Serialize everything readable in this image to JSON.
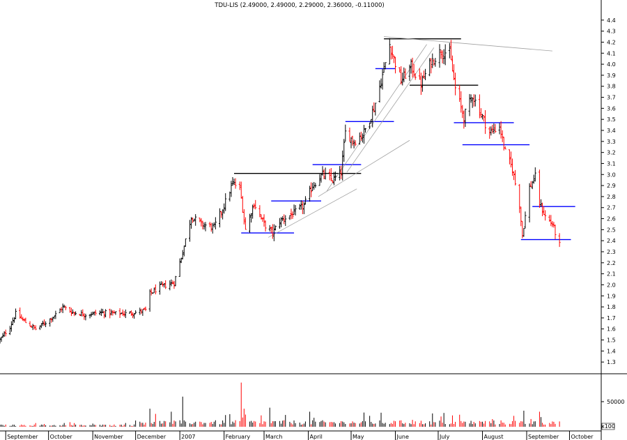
{
  "chart_data": {
    "type": "ohlc",
    "title": "TDU-LIS (2.49000, 2.49000, 2.29000, 2.36000, -0.11000)",
    "price_axis": {
      "ylim": [
        1.2,
        4.5
      ],
      "ticks": [
        "1.3",
        "1.4",
        "1.5",
        "1.6",
        "1.7",
        "1.8",
        "1.9",
        "2.0",
        "2.1",
        "2.2",
        "2.3",
        "2.4",
        "2.5",
        "2.6",
        "2.7",
        "2.8",
        "2.9",
        "3.0",
        "3.1",
        "3.2",
        "3.3",
        "3.4",
        "3.5",
        "3.6",
        "3.7",
        "3.8",
        "3.9",
        "4.0",
        "4.1",
        "4.2",
        "4.3",
        "4.4"
      ]
    },
    "volume_axis": {
      "ticks": [
        "50000",
        "0"
      ],
      "multiplier_label": "x100"
    },
    "x_axis": {
      "months": [
        "September",
        "October",
        "November",
        "December",
        "2007",
        "February",
        "March",
        "April",
        "May",
        "June",
        "July",
        "August",
        "September",
        "October"
      ],
      "start_date": "2006-08-28",
      "end_date": "2007-10-12"
    },
    "colors": {
      "up": "#000000",
      "down": "#ff0000",
      "support_resistance": "#0000ff",
      "black_line": "#000000",
      "trend_line": "#a0a0a0"
    },
    "price_path": [
      [
        "2006-08-28",
        1.5
      ],
      [
        "2006-09-04",
        1.62
      ],
      [
        "2006-09-08",
        1.74
      ],
      [
        "2006-09-15",
        1.66
      ],
      [
        "2006-09-22",
        1.6
      ],
      [
        "2006-09-29",
        1.66
      ],
      [
        "2006-10-06",
        1.73
      ],
      [
        "2006-10-11",
        1.8
      ],
      [
        "2006-10-18",
        1.75
      ],
      [
        "2006-10-27",
        1.73
      ],
      [
        "2006-11-06",
        1.75
      ],
      [
        "2006-11-15",
        1.74
      ],
      [
        "2006-11-24",
        1.74
      ],
      [
        "2006-12-01",
        1.75
      ],
      [
        "2006-12-08",
        1.77
      ],
      [
        "2006-12-11",
        1.92
      ],
      [
        "2006-12-18",
        1.98
      ],
      [
        "2006-12-28",
        2.02
      ],
      [
        "2007-01-03",
        2.3
      ],
      [
        "2007-01-09",
        2.62
      ],
      [
        "2007-01-16",
        2.55
      ],
      [
        "2007-01-25",
        2.52
      ],
      [
        "2007-02-01",
        2.72
      ],
      [
        "2007-02-07",
        2.92
      ],
      [
        "2007-02-12",
        2.88
      ],
      [
        "2007-02-16",
        2.5
      ],
      [
        "2007-02-22",
        2.74
      ],
      [
        "2007-03-01",
        2.55
      ],
      [
        "2007-03-07",
        2.47
      ],
      [
        "2007-03-12",
        2.58
      ],
      [
        "2007-03-22",
        2.65
      ],
      [
        "2007-03-29",
        2.72
      ],
      [
        "2007-04-04",
        2.9
      ],
      [
        "2007-04-11",
        3.0
      ],
      [
        "2007-04-18",
        2.95
      ],
      [
        "2007-04-24",
        3.02
      ],
      [
        "2007-04-27",
        3.38
      ],
      [
        "2007-05-03",
        3.3
      ],
      [
        "2007-05-10",
        3.38
      ],
      [
        "2007-05-17",
        3.6
      ],
      [
        "2007-05-23",
        3.9
      ],
      [
        "2007-05-28",
        4.18
      ],
      [
        "2007-05-31",
        4.05
      ],
      [
        "2007-06-05",
        3.85
      ],
      [
        "2007-06-12",
        3.98
      ],
      [
        "2007-06-19",
        3.82
      ],
      [
        "2007-06-26",
        4.02
      ],
      [
        "2007-07-03",
        4.12
      ],
      [
        "2007-07-09",
        4.1
      ],
      [
        "2007-07-13",
        3.78
      ],
      [
        "2007-07-19",
        3.52
      ],
      [
        "2007-07-25",
        3.72
      ],
      [
        "2007-07-31",
        3.55
      ],
      [
        "2007-08-06",
        3.38
      ],
      [
        "2007-08-13",
        3.44
      ],
      [
        "2007-08-17",
        3.2
      ],
      [
        "2007-08-22",
        3.05
      ],
      [
        "2007-08-27",
        2.72
      ],
      [
        "2007-08-29",
        2.45
      ],
      [
        "2007-09-03",
        2.88
      ],
      [
        "2007-09-07",
        2.98
      ],
      [
        "2007-09-10",
        2.74
      ],
      [
        "2007-09-14",
        2.62
      ],
      [
        "2007-09-19",
        2.55
      ],
      [
        "2007-09-24",
        2.36
      ]
    ],
    "volume_spikes": [
      [
        "2006-12-11",
        36000
      ],
      [
        "2006-12-26",
        30000
      ],
      [
        "2007-01-03",
        60000
      ],
      [
        "2007-02-13",
        88000
      ],
      [
        "2007-02-15",
        36000
      ],
      [
        "2007-03-05",
        38000
      ],
      [
        "2007-04-02",
        30000
      ],
      [
        "2007-05-22",
        28000
      ],
      [
        "2007-08-30",
        32000
      ],
      [
        "2007-09-10",
        30000
      ]
    ],
    "overlay_lines": [
      {
        "kind": "black",
        "from": [
          "2007-02-08",
          3.01
        ],
        "to": [
          "2007-05-08",
          3.01
        ]
      },
      {
        "kind": "black",
        "from": [
          "2007-05-24",
          4.23
        ],
        "to": [
          "2007-07-17",
          4.23
        ]
      },
      {
        "kind": "black",
        "from": [
          "2007-06-11",
          3.81
        ],
        "to": [
          "2007-07-29",
          3.81
        ]
      },
      {
        "kind": "blue",
        "from": [
          "2007-02-13",
          2.47
        ],
        "to": [
          "2007-03-22",
          2.47
        ]
      },
      {
        "kind": "blue",
        "from": [
          "2007-03-06",
          2.76
        ],
        "to": [
          "2007-04-10",
          2.76
        ]
      },
      {
        "kind": "blue",
        "from": [
          "2007-04-04",
          3.09
        ],
        "to": [
          "2007-05-08",
          3.09
        ]
      },
      {
        "kind": "blue",
        "from": [
          "2007-04-27",
          3.48
        ],
        "to": [
          "2007-05-31",
          3.48
        ]
      },
      {
        "kind": "blue",
        "from": [
          "2007-05-18",
          3.96
        ],
        "to": [
          "2007-06-01",
          3.96
        ]
      },
      {
        "kind": "blue",
        "from": [
          "2007-07-12",
          3.47
        ],
        "to": [
          "2007-08-23",
          3.47
        ]
      },
      {
        "kind": "blue",
        "from": [
          "2007-07-18",
          3.27
        ],
        "to": [
          "2007-09-03",
          3.27
        ]
      },
      {
        "kind": "blue",
        "from": [
          "2007-09-05",
          2.71
        ],
        "to": [
          "2007-10-05",
          2.71
        ]
      },
      {
        "kind": "blue",
        "from": [
          "2007-08-28",
          2.41
        ],
        "to": [
          "2007-10-02",
          2.41
        ]
      },
      {
        "kind": "trend",
        "from": [
          "2007-05-24",
          4.25
        ],
        "to": [
          "2007-09-19",
          4.12
        ]
      },
      {
        "kind": "trend",
        "from": [
          "2007-03-04",
          2.43
        ],
        "to": [
          "2007-05-05",
          2.87
        ]
      },
      {
        "kind": "trend",
        "from": [
          "2007-04-08",
          2.8
        ],
        "to": [
          "2007-06-11",
          3.31
        ]
      },
      {
        "kind": "trend",
        "from": [
          "2007-04-14",
          2.85
        ],
        "to": [
          "2007-06-23",
          4.18
        ]
      },
      {
        "kind": "trend",
        "from": [
          "2007-04-28",
          3.02
        ],
        "to": [
          "2007-06-28",
          4.15
        ]
      }
    ]
  }
}
